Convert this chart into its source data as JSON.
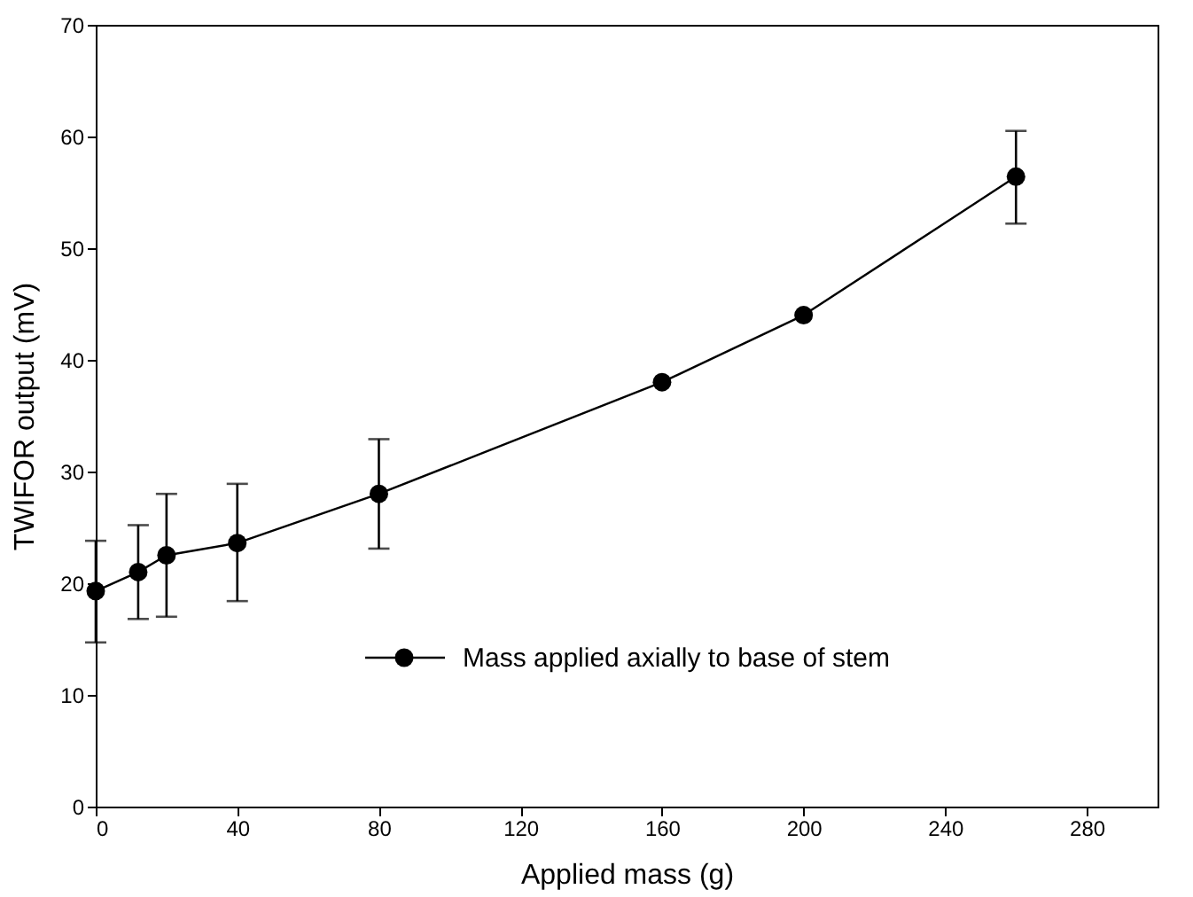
{
  "chart_data": {
    "type": "line",
    "xlabel": "Applied mass (g)",
    "ylabel": "TWIFOR output (mV)",
    "x": [
      0,
      12,
      20,
      40,
      80,
      160,
      200,
      260
    ],
    "series": [
      {
        "name": "Mass applied axially to base of stem",
        "color": "#000000",
        "values": [
          19.3,
          21,
          22.5,
          23.6,
          28,
          38,
          44,
          56.4
        ],
        "errors": [
          [
            14.7,
            23.8
          ],
          [
            16.8,
            25.2
          ],
          [
            17,
            28
          ],
          [
            18.4,
            28.9
          ],
          [
            23.1,
            32.9
          ],
          null,
          null,
          [
            52.2,
            60.5
          ]
        ]
      }
    ],
    "xlim": [
      0,
      300
    ],
    "xticks": [
      0,
      40,
      80,
      120,
      160,
      200,
      240,
      280
    ],
    "ylim": [
      0,
      70
    ],
    "yticks": [
      0,
      10,
      20,
      30,
      40,
      50,
      60,
      70
    ],
    "marker": "circle",
    "line_style": "solid",
    "grid": false,
    "legend": "bottom right"
  }
}
